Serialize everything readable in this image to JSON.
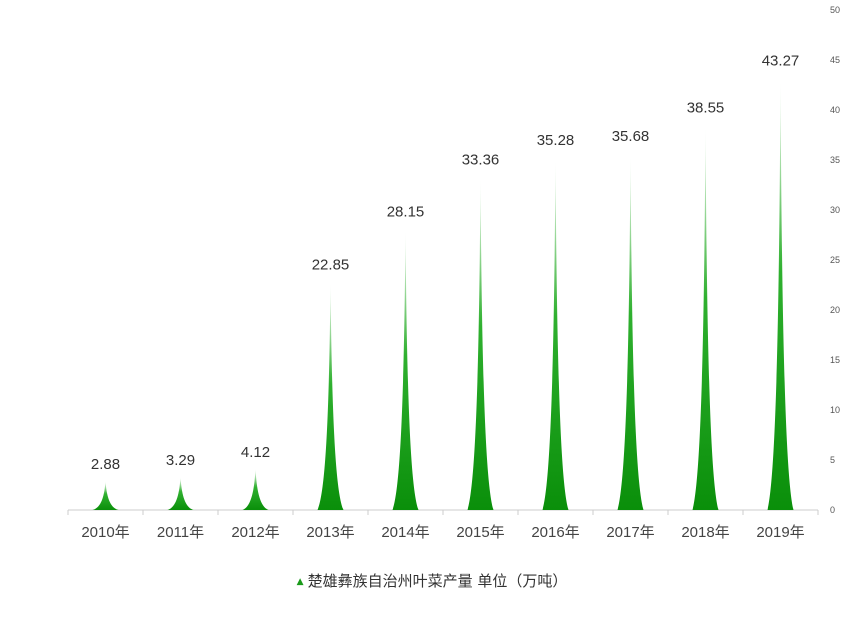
{
  "chart_data": {
    "type": "bar",
    "categories": [
      "2010年",
      "2011年",
      "2012年",
      "2013年",
      "2014年",
      "2015年",
      "2016年",
      "2017年",
      "2018年",
      "2019年"
    ],
    "series": [
      {
        "name": "楚雄彝族自治州叶菜产量 单位（万吨）",
        "values": [
          2.88,
          3.29,
          4.12,
          22.85,
          28.15,
          33.36,
          35.28,
          35.68,
          38.55,
          43.27
        ]
      }
    ],
    "data_labels": [
      "2.88",
      "3.29",
      "4.12",
      "22.85",
      "28.15",
      "33.36",
      "35.28",
      "35.68",
      "38.55",
      "43.27"
    ],
    "y_ticks": [
      "0",
      "5",
      "10",
      "15",
      "20",
      "25",
      "30",
      "35",
      "40",
      "45",
      "50"
    ],
    "ylim": [
      0,
      50
    ],
    "y_axis_side": "right",
    "grid": false,
    "legend": {
      "position": "bottom-center",
      "marker": "▲"
    },
    "colors": {
      "bar_base": "#0a8f0a",
      "bar_tip": "#ffffff"
    }
  }
}
